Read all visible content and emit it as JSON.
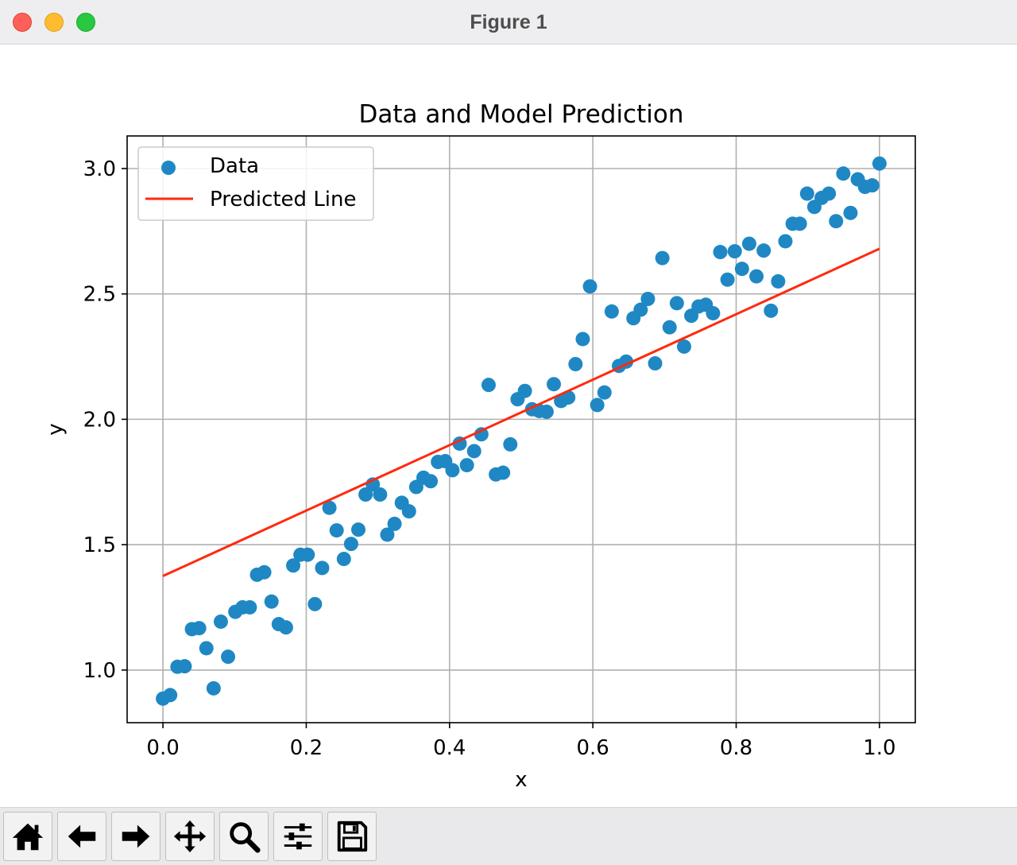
{
  "window": {
    "title": "Figure 1"
  },
  "toolbar": {
    "buttons": [
      {
        "name": "home-button",
        "icon": "home-icon"
      },
      {
        "name": "back-button",
        "icon": "arrow-left-icon"
      },
      {
        "name": "forward-button",
        "icon": "arrow-right-icon"
      },
      {
        "name": "pan-button",
        "icon": "move-icon"
      },
      {
        "name": "zoom-button",
        "icon": "magnifier-icon"
      },
      {
        "name": "subplots-button",
        "icon": "sliders-icon"
      },
      {
        "name": "save-button",
        "icon": "floppy-disk-icon"
      }
    ]
  },
  "chart_data": {
    "type": "scatter",
    "title": "Data and Model Prediction",
    "xlabel": "x",
    "ylabel": "y",
    "xlim": [
      -0.05,
      1.05
    ],
    "ylim": [
      0.79,
      3.13
    ],
    "xticks": [
      0.0,
      0.2,
      0.4,
      0.6,
      0.8,
      1.0
    ],
    "xtick_labels": [
      "0.0",
      "0.2",
      "0.4",
      "0.6",
      "0.8",
      "1.0"
    ],
    "yticks": [
      1.0,
      1.5,
      2.0,
      2.5,
      3.0
    ],
    "ytick_labels": [
      "1.0",
      "1.5",
      "2.0",
      "2.5",
      "3.0"
    ],
    "grid": true,
    "legend_position": "top-left",
    "colors": {
      "data": "#1f88c4",
      "line": "#ff2a0f",
      "grid": "#b0b0b0"
    },
    "series": [
      {
        "name": "Data",
        "kind": "scatter",
        "x": [
          0.0,
          0.0101,
          0.0202,
          0.0303,
          0.0404,
          0.0505,
          0.0606,
          0.0707,
          0.0808,
          0.0909,
          0.101,
          0.1111,
          0.1212,
          0.1313,
          0.1414,
          0.1515,
          0.1616,
          0.1717,
          0.1818,
          0.1919,
          0.202,
          0.2121,
          0.2222,
          0.2323,
          0.2424,
          0.2525,
          0.2626,
          0.2727,
          0.2828,
          0.2929,
          0.303,
          0.3131,
          0.3232,
          0.3333,
          0.3434,
          0.3535,
          0.3636,
          0.3737,
          0.3838,
          0.3939,
          0.404,
          0.4141,
          0.4242,
          0.4343,
          0.4444,
          0.4545,
          0.4646,
          0.4747,
          0.4848,
          0.4949,
          0.5051,
          0.5152,
          0.5253,
          0.5354,
          0.5455,
          0.5556,
          0.5657,
          0.5758,
          0.5859,
          0.596,
          0.6061,
          0.6162,
          0.6263,
          0.6364,
          0.6465,
          0.6566,
          0.6667,
          0.6768,
          0.6869,
          0.697,
          0.7071,
          0.7172,
          0.7273,
          0.7374,
          0.7475,
          0.7576,
          0.7677,
          0.7778,
          0.7879,
          0.798,
          0.8081,
          0.8182,
          0.8283,
          0.8384,
          0.8485,
          0.8586,
          0.8687,
          0.8788,
          0.8889,
          0.899,
          0.9091,
          0.9192,
          0.9293,
          0.9394,
          0.9495,
          0.9596,
          0.9697,
          0.9798,
          0.9899,
          1.0
        ],
        "y": [
          0.886,
          0.9,
          1.013,
          1.015,
          1.163,
          1.167,
          1.087,
          0.927,
          1.193,
          1.053,
          1.232,
          1.25,
          1.25,
          1.38,
          1.39,
          1.273,
          1.183,
          1.17,
          1.417,
          1.46,
          1.46,
          1.263,
          1.407,
          1.647,
          1.557,
          1.443,
          1.503,
          1.56,
          1.7,
          1.74,
          1.7,
          1.54,
          1.583,
          1.667,
          1.633,
          1.73,
          1.767,
          1.753,
          1.83,
          1.833,
          1.797,
          1.903,
          1.817,
          1.873,
          1.94,
          2.137,
          1.78,
          1.787,
          1.9,
          2.08,
          2.113,
          2.04,
          2.033,
          2.03,
          2.14,
          2.073,
          2.087,
          2.22,
          2.32,
          2.53,
          2.057,
          2.107,
          2.43,
          2.213,
          2.23,
          2.403,
          2.437,
          2.48,
          2.223,
          2.643,
          2.367,
          2.463,
          2.29,
          2.413,
          2.45,
          2.457,
          2.423,
          2.667,
          2.557,
          2.67,
          2.6,
          2.7,
          2.57,
          2.673,
          2.433,
          2.55,
          2.71,
          2.78,
          2.78,
          2.9,
          2.847,
          2.883,
          2.9,
          2.79,
          2.98,
          2.823,
          2.957,
          2.927,
          2.933,
          3.02
        ]
      },
      {
        "name": "Predicted Line",
        "kind": "line",
        "x": [
          0.0,
          1.0
        ],
        "y": [
          1.375,
          2.68
        ]
      }
    ]
  }
}
